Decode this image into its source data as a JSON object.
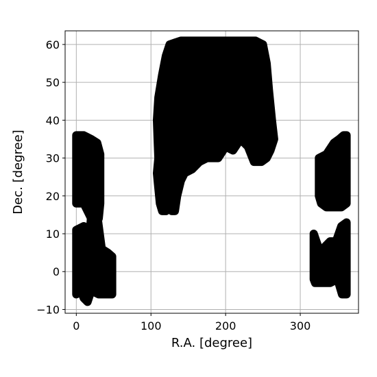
{
  "chart_data": {
    "type": "scatter",
    "title": "",
    "xlabel": "R.A. [degree]",
    "ylabel": "Dec. [degree]",
    "xlim": [
      -15,
      378
    ],
    "ylim": [
      -11,
      63.6
    ],
    "x_ticks": [
      0,
      100,
      200,
      300
    ],
    "y_ticks": [
      -10,
      0,
      10,
      20,
      30,
      40,
      50,
      60
    ],
    "grid": true,
    "legend": "none",
    "marker_color": "#000000",
    "grid_color": "#b0b0b0",
    "series": [
      {
        "values": [],
        "regions": [
          {
            "outline": [
              [
                0,
                11
              ],
              [
                10,
                12
              ],
              [
                12,
                8
              ],
              [
                18,
                10
              ],
              [
                20,
                15
              ],
              [
                28,
                15
              ],
              [
                30,
                12
              ],
              [
                34,
                6
              ],
              [
                42,
                5
              ],
              [
                48,
                4
              ],
              [
                48,
                -6
              ],
              [
                40,
                -6
              ],
              [
                30,
                -6
              ],
              [
                20,
                -5
              ],
              [
                15,
                -8
              ],
              [
                10,
                -7
              ],
              [
                6,
                -5
              ],
              [
                0,
                -6
              ]
            ]
          },
          {
            "outline": [
              [
                0,
                36
              ],
              [
                10,
                36
              ],
              [
                20,
                35
              ],
              [
                28,
                34
              ],
              [
                32,
                31
              ],
              [
                32,
                18
              ],
              [
                30,
                14
              ],
              [
                20,
                14
              ],
              [
                10,
                18
              ],
              [
                0,
                18
              ]
            ]
          },
          {
            "outline": [
              [
                108,
                40
              ],
              [
                110,
                46
              ],
              [
                115,
                52
              ],
              [
                120,
                57
              ],
              [
                125,
                60
              ],
              [
                140,
                61
              ],
              [
                160,
                61
              ],
              [
                180,
                61
              ],
              [
                200,
                61
              ],
              [
                220,
                61
              ],
              [
                240,
                61
              ],
              [
                250,
                60
              ],
              [
                255,
                55
              ],
              [
                258,
                48
              ],
              [
                262,
                40
              ],
              [
                265,
                35
              ],
              [
                260,
                32
              ],
              [
                255,
                30
              ],
              [
                248,
                29
              ],
              [
                238,
                29
              ],
              [
                230,
                33
              ],
              [
                220,
                35
              ],
              [
                210,
                32
              ],
              [
                200,
                33
              ],
              [
                190,
                30
              ],
              [
                175,
                30
              ],
              [
                165,
                29
              ],
              [
                155,
                27
              ],
              [
                145,
                26
              ],
              [
                140,
                24
              ],
              [
                135,
                20
              ],
              [
                132,
                16
              ],
              [
                128,
                16
              ],
              [
                125,
                18
              ],
              [
                120,
                16
              ],
              [
                115,
                16
              ],
              [
                112,
                18
              ],
              [
                110,
                22
              ],
              [
                108,
                26
              ],
              [
                110,
                30
              ],
              [
                109,
                35
              ]
            ]
          },
          {
            "outline": [
              [
                318,
                10
              ],
              [
                325,
                6
              ],
              [
                330,
                6
              ],
              [
                340,
                8
              ],
              [
                348,
                8
              ],
              [
                355,
                12
              ],
              [
                362,
                13
              ],
              [
                362,
                -6
              ],
              [
                356,
                -6
              ],
              [
                350,
                -2
              ],
              [
                340,
                -3
              ],
              [
                330,
                -3
              ],
              [
                320,
                -3
              ],
              [
                318,
                -2
              ]
            ]
          },
          {
            "outline": [
              [
                325,
                30
              ],
              [
                335,
                31
              ],
              [
                345,
                34
              ],
              [
                352,
                35
              ],
              [
                358,
                36
              ],
              [
                362,
                36
              ],
              [
                362,
                18
              ],
              [
                355,
                17
              ],
              [
                345,
                17
              ],
              [
                335,
                17
              ],
              [
                328,
                18
              ],
              [
                325,
                20
              ]
            ]
          }
        ]
      }
    ]
  }
}
